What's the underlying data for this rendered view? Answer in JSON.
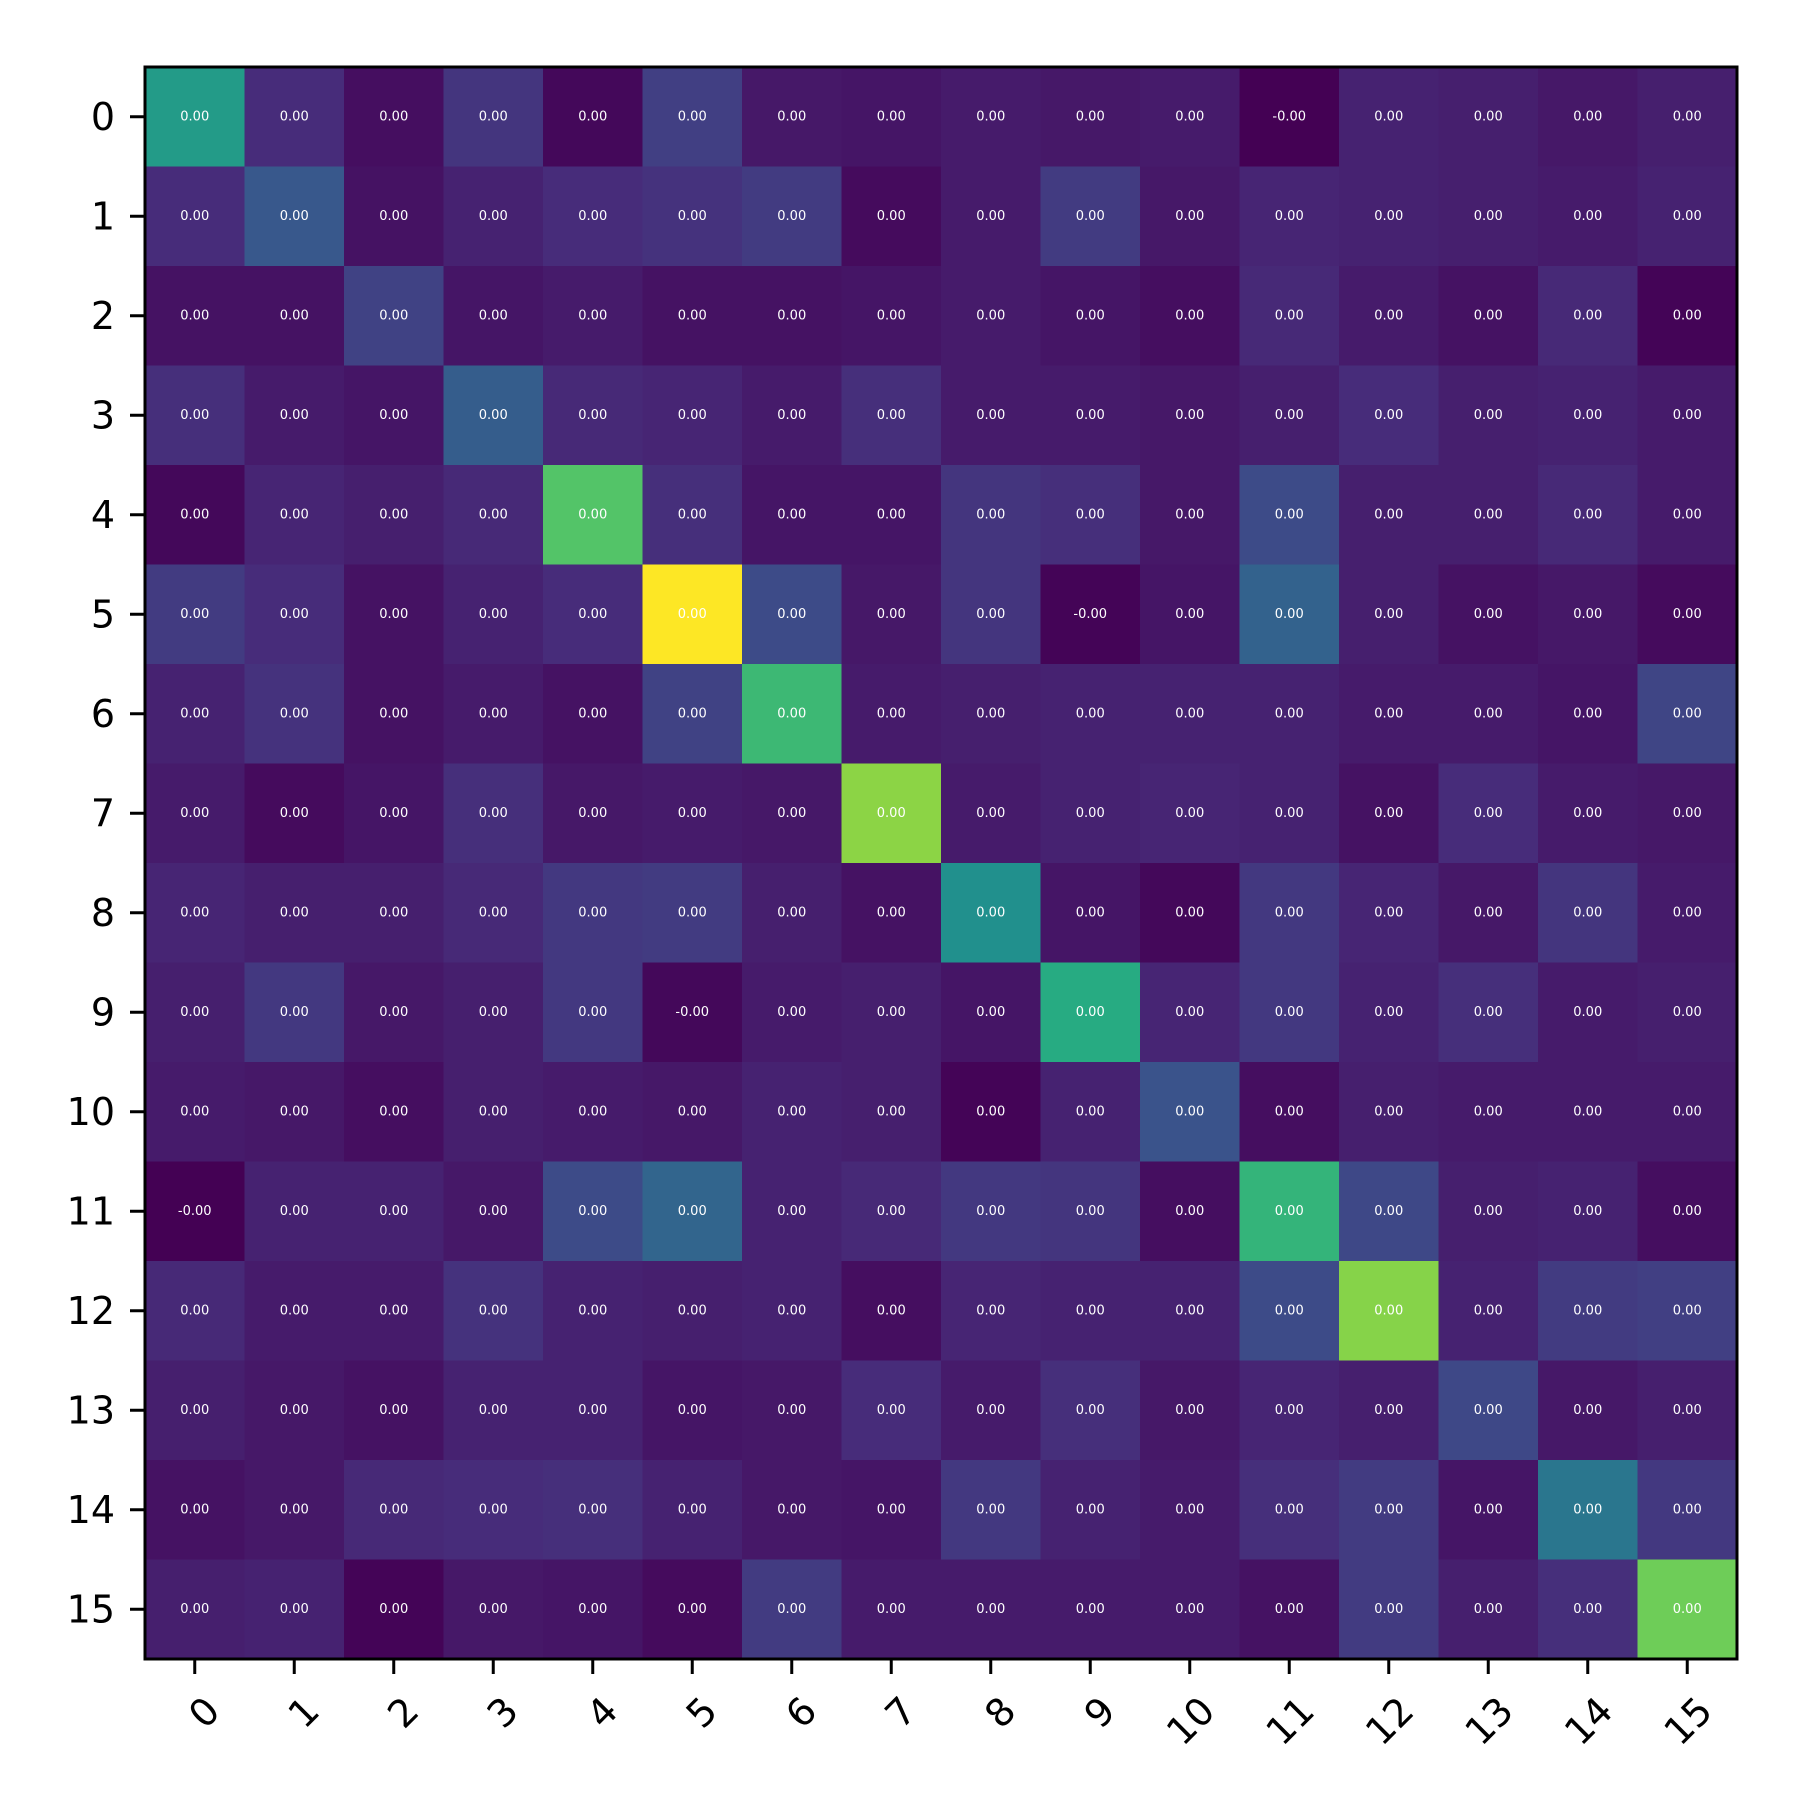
{
  "chart_data": {
    "type": "heatmap",
    "title": "",
    "xlabel": "",
    "ylabel": "",
    "x_tick_labels": [
      "0",
      "1",
      "2",
      "3",
      "4",
      "5",
      "6",
      "7",
      "8",
      "9",
      "10",
      "11",
      "12",
      "13",
      "14",
      "15"
    ],
    "y_tick_labels": [
      "0",
      "1",
      "2",
      "3",
      "4",
      "5",
      "6",
      "7",
      "8",
      "9",
      "10",
      "11",
      "12",
      "13",
      "14",
      "15"
    ],
    "x_tick_rotation_deg": 45,
    "colormap": "viridis",
    "colorbar": false,
    "grid": false,
    "cell_labels": [
      [
        "0.00",
        "0.00",
        "0.00",
        "0.00",
        "0.00",
        "0.00",
        "0.00",
        "0.00",
        "0.00",
        "0.00",
        "0.00",
        "-0.00",
        "0.00",
        "0.00",
        "0.00",
        "0.00"
      ],
      [
        "0.00",
        "0.00",
        "0.00",
        "0.00",
        "0.00",
        "0.00",
        "0.00",
        "0.00",
        "0.00",
        "0.00",
        "0.00",
        "0.00",
        "0.00",
        "0.00",
        "0.00",
        "0.00"
      ],
      [
        "0.00",
        "0.00",
        "0.00",
        "0.00",
        "0.00",
        "0.00",
        "0.00",
        "0.00",
        "0.00",
        "0.00",
        "0.00",
        "0.00",
        "0.00",
        "0.00",
        "0.00",
        "0.00"
      ],
      [
        "0.00",
        "0.00",
        "0.00",
        "0.00",
        "0.00",
        "0.00",
        "0.00",
        "0.00",
        "0.00",
        "0.00",
        "0.00",
        "0.00",
        "0.00",
        "0.00",
        "0.00",
        "0.00"
      ],
      [
        "0.00",
        "0.00",
        "0.00",
        "0.00",
        "0.00",
        "0.00",
        "0.00",
        "0.00",
        "0.00",
        "0.00",
        "0.00",
        "0.00",
        "0.00",
        "0.00",
        "0.00",
        "0.00"
      ],
      [
        "0.00",
        "0.00",
        "0.00",
        "0.00",
        "0.00",
        "0.00",
        "0.00",
        "0.00",
        "0.00",
        "-0.00",
        "0.00",
        "0.00",
        "0.00",
        "0.00",
        "0.00",
        "0.00"
      ],
      [
        "0.00",
        "0.00",
        "0.00",
        "0.00",
        "0.00",
        "0.00",
        "0.00",
        "0.00",
        "0.00",
        "0.00",
        "0.00",
        "0.00",
        "0.00",
        "0.00",
        "0.00",
        "0.00"
      ],
      [
        "0.00",
        "0.00",
        "0.00",
        "0.00",
        "0.00",
        "0.00",
        "0.00",
        "0.00",
        "0.00",
        "0.00",
        "0.00",
        "0.00",
        "0.00",
        "0.00",
        "0.00",
        "0.00"
      ],
      [
        "0.00",
        "0.00",
        "0.00",
        "0.00",
        "0.00",
        "0.00",
        "0.00",
        "0.00",
        "0.00",
        "0.00",
        "0.00",
        "0.00",
        "0.00",
        "0.00",
        "0.00",
        "0.00"
      ],
      [
        "0.00",
        "0.00",
        "0.00",
        "0.00",
        "0.00",
        "-0.00",
        "0.00",
        "0.00",
        "0.00",
        "0.00",
        "0.00",
        "0.00",
        "0.00",
        "0.00",
        "0.00",
        "0.00"
      ],
      [
        "0.00",
        "0.00",
        "0.00",
        "0.00",
        "0.00",
        "0.00",
        "0.00",
        "0.00",
        "0.00",
        "0.00",
        "0.00",
        "0.00",
        "0.00",
        "0.00",
        "0.00",
        "0.00"
      ],
      [
        "-0.00",
        "0.00",
        "0.00",
        "0.00",
        "0.00",
        "0.00",
        "0.00",
        "0.00",
        "0.00",
        "0.00",
        "0.00",
        "0.00",
        "0.00",
        "0.00",
        "0.00",
        "0.00"
      ],
      [
        "0.00",
        "0.00",
        "0.00",
        "0.00",
        "0.00",
        "0.00",
        "0.00",
        "0.00",
        "0.00",
        "0.00",
        "0.00",
        "0.00",
        "0.00",
        "0.00",
        "0.00",
        "0.00"
      ],
      [
        "0.00",
        "0.00",
        "0.00",
        "0.00",
        "0.00",
        "0.00",
        "0.00",
        "0.00",
        "0.00",
        "0.00",
        "0.00",
        "0.00",
        "0.00",
        "0.00",
        "0.00",
        "0.00"
      ],
      [
        "0.00",
        "0.00",
        "0.00",
        "0.00",
        "0.00",
        "0.00",
        "0.00",
        "0.00",
        "0.00",
        "0.00",
        "0.00",
        "0.00",
        "0.00",
        "0.00",
        "0.00",
        "0.00"
      ],
      [
        "0.00",
        "0.00",
        "0.00",
        "0.00",
        "0.00",
        "0.00",
        "0.00",
        "0.00",
        "0.00",
        "0.00",
        "0.00",
        "0.00",
        "0.00",
        "0.00",
        "0.00",
        "0.00"
      ]
    ],
    "relative_intensity": [
      [
        0.55,
        0.13,
        0.04,
        0.16,
        0.02,
        0.19,
        0.07,
        0.06,
        0.08,
        0.07,
        0.08,
        0.0,
        0.1,
        0.09,
        0.07,
        0.09
      ],
      [
        0.13,
        0.28,
        0.05,
        0.1,
        0.13,
        0.15,
        0.18,
        0.03,
        0.08,
        0.18,
        0.07,
        0.11,
        0.1,
        0.09,
        0.08,
        0.1
      ],
      [
        0.05,
        0.05,
        0.2,
        0.06,
        0.08,
        0.05,
        0.05,
        0.06,
        0.08,
        0.06,
        0.04,
        0.12,
        0.08,
        0.05,
        0.12,
        0.01
      ],
      [
        0.14,
        0.08,
        0.06,
        0.3,
        0.12,
        0.11,
        0.08,
        0.14,
        0.08,
        0.08,
        0.07,
        0.09,
        0.13,
        0.09,
        0.1,
        0.08
      ],
      [
        0.02,
        0.11,
        0.09,
        0.12,
        0.73,
        0.14,
        0.06,
        0.06,
        0.16,
        0.14,
        0.07,
        0.23,
        0.09,
        0.09,
        0.12,
        0.08
      ],
      [
        0.18,
        0.13,
        0.05,
        0.1,
        0.13,
        1.0,
        0.23,
        0.07,
        0.16,
        0.01,
        0.06,
        0.32,
        0.09,
        0.05,
        0.07,
        0.03
      ],
      [
        0.1,
        0.15,
        0.05,
        0.08,
        0.05,
        0.2,
        0.68,
        0.08,
        0.09,
        0.1,
        0.1,
        0.1,
        0.08,
        0.08,
        0.06,
        0.21
      ],
      [
        0.08,
        0.03,
        0.06,
        0.14,
        0.07,
        0.08,
        0.07,
        0.83,
        0.08,
        0.1,
        0.11,
        0.1,
        0.05,
        0.13,
        0.08,
        0.07
      ],
      [
        0.11,
        0.09,
        0.09,
        0.12,
        0.17,
        0.18,
        0.09,
        0.05,
        0.5,
        0.06,
        0.02,
        0.17,
        0.11,
        0.07,
        0.16,
        0.08
      ],
      [
        0.09,
        0.17,
        0.07,
        0.09,
        0.17,
        0.02,
        0.08,
        0.09,
        0.06,
        0.62,
        0.11,
        0.17,
        0.1,
        0.14,
        0.08,
        0.09
      ],
      [
        0.08,
        0.07,
        0.04,
        0.09,
        0.08,
        0.07,
        0.1,
        0.09,
        0.01,
        0.1,
        0.26,
        0.04,
        0.09,
        0.08,
        0.08,
        0.08
      ],
      [
        0.0,
        0.1,
        0.1,
        0.07,
        0.23,
        0.33,
        0.1,
        0.12,
        0.17,
        0.16,
        0.04,
        0.66,
        0.22,
        0.09,
        0.1,
        0.04
      ],
      [
        0.12,
        0.08,
        0.08,
        0.15,
        0.1,
        0.09,
        0.1,
        0.04,
        0.11,
        0.1,
        0.1,
        0.23,
        0.82,
        0.1,
        0.18,
        0.19
      ],
      [
        0.09,
        0.07,
        0.05,
        0.1,
        0.1,
        0.06,
        0.07,
        0.13,
        0.08,
        0.14,
        0.07,
        0.11,
        0.09,
        0.22,
        0.07,
        0.09
      ],
      [
        0.05,
        0.07,
        0.12,
        0.13,
        0.14,
        0.1,
        0.07,
        0.06,
        0.17,
        0.1,
        0.08,
        0.14,
        0.18,
        0.06,
        0.4,
        0.17
      ],
      [
        0.09,
        0.1,
        0.01,
        0.07,
        0.06,
        0.03,
        0.18,
        0.08,
        0.08,
        0.08,
        0.08,
        0.05,
        0.18,
        0.09,
        0.14,
        0.78
      ]
    ]
  }
}
